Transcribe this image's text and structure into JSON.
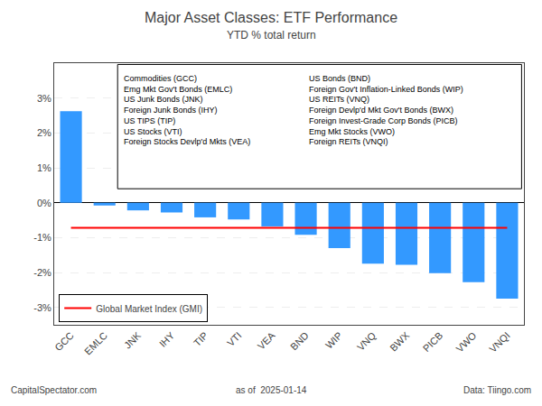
{
  "chart_data": {
    "type": "bar",
    "title": "Major Asset Classes: ETF Performance",
    "subtitle": "YTD % total return",
    "categories": [
      "GCC",
      "EMLC",
      "JNK",
      "IHY",
      "TIP",
      "VTI",
      "VEA",
      "BND",
      "WIP",
      "VNQ",
      "BWX",
      "PICB",
      "VWO",
      "VNQI"
    ],
    "series": [
      {
        "type": "bar",
        "color": "#3399FF",
        "values": [
          2.62,
          -0.08,
          -0.22,
          -0.28,
          -0.42,
          -0.48,
          -0.68,
          -0.92,
          -1.3,
          -1.75,
          -1.78,
          -2.02,
          -2.28,
          -2.75
        ]
      },
      {
        "name": "Global Market Index (GMI)",
        "type": "line",
        "color": "#FF0000",
        "values": [
          -0.72,
          -0.72,
          -0.72,
          -0.72,
          -0.72,
          -0.72,
          -0.72,
          -0.72,
          -0.72,
          -0.72,
          -0.72,
          -0.72,
          -0.72,
          -0.72
        ]
      }
    ],
    "ylim": [
      -3.5,
      4.0
    ],
    "yticks": [
      {
        "value": -3,
        "label": "-3%"
      },
      {
        "value": -2,
        "label": "-2%"
      },
      {
        "value": -1,
        "label": "-1%"
      },
      {
        "value": 0,
        "label": "0%"
      },
      {
        "value": 1,
        "label": "1%"
      },
      {
        "value": 2,
        "label": "2%"
      },
      {
        "value": 3,
        "label": "3%"
      }
    ],
    "grid": true,
    "legend": "lower left",
    "annotations": [
      "Commodities (GCC)",
      "Emg Mkt Gov't Bonds (EMLC)",
      "US Junk Bonds (JNK)",
      "Foreign Junk Bonds (IHY)",
      "US TIPS (TIP)",
      "US Stocks (VTI)",
      "Foreign Stocks Devlp'd Mkts (VEA)",
      "US Bonds (BND)",
      "Foreign Gov't Inflation-Linked Bonds (WIP)",
      "US REITs (VNQ)",
      "Foreign Devlp'd Mkt Gov't Bonds (BWX)",
      "Foreign Invest-Grade Corp Bonds (PICB)",
      "Emg Mkt Stocks (VWO)",
      "Foreign REITs (VNQI)"
    ],
    "footer": [
      "CapitalSpectator.com",
      "as of  2025-01-14",
      "Data: Tiingo.com"
    ]
  }
}
